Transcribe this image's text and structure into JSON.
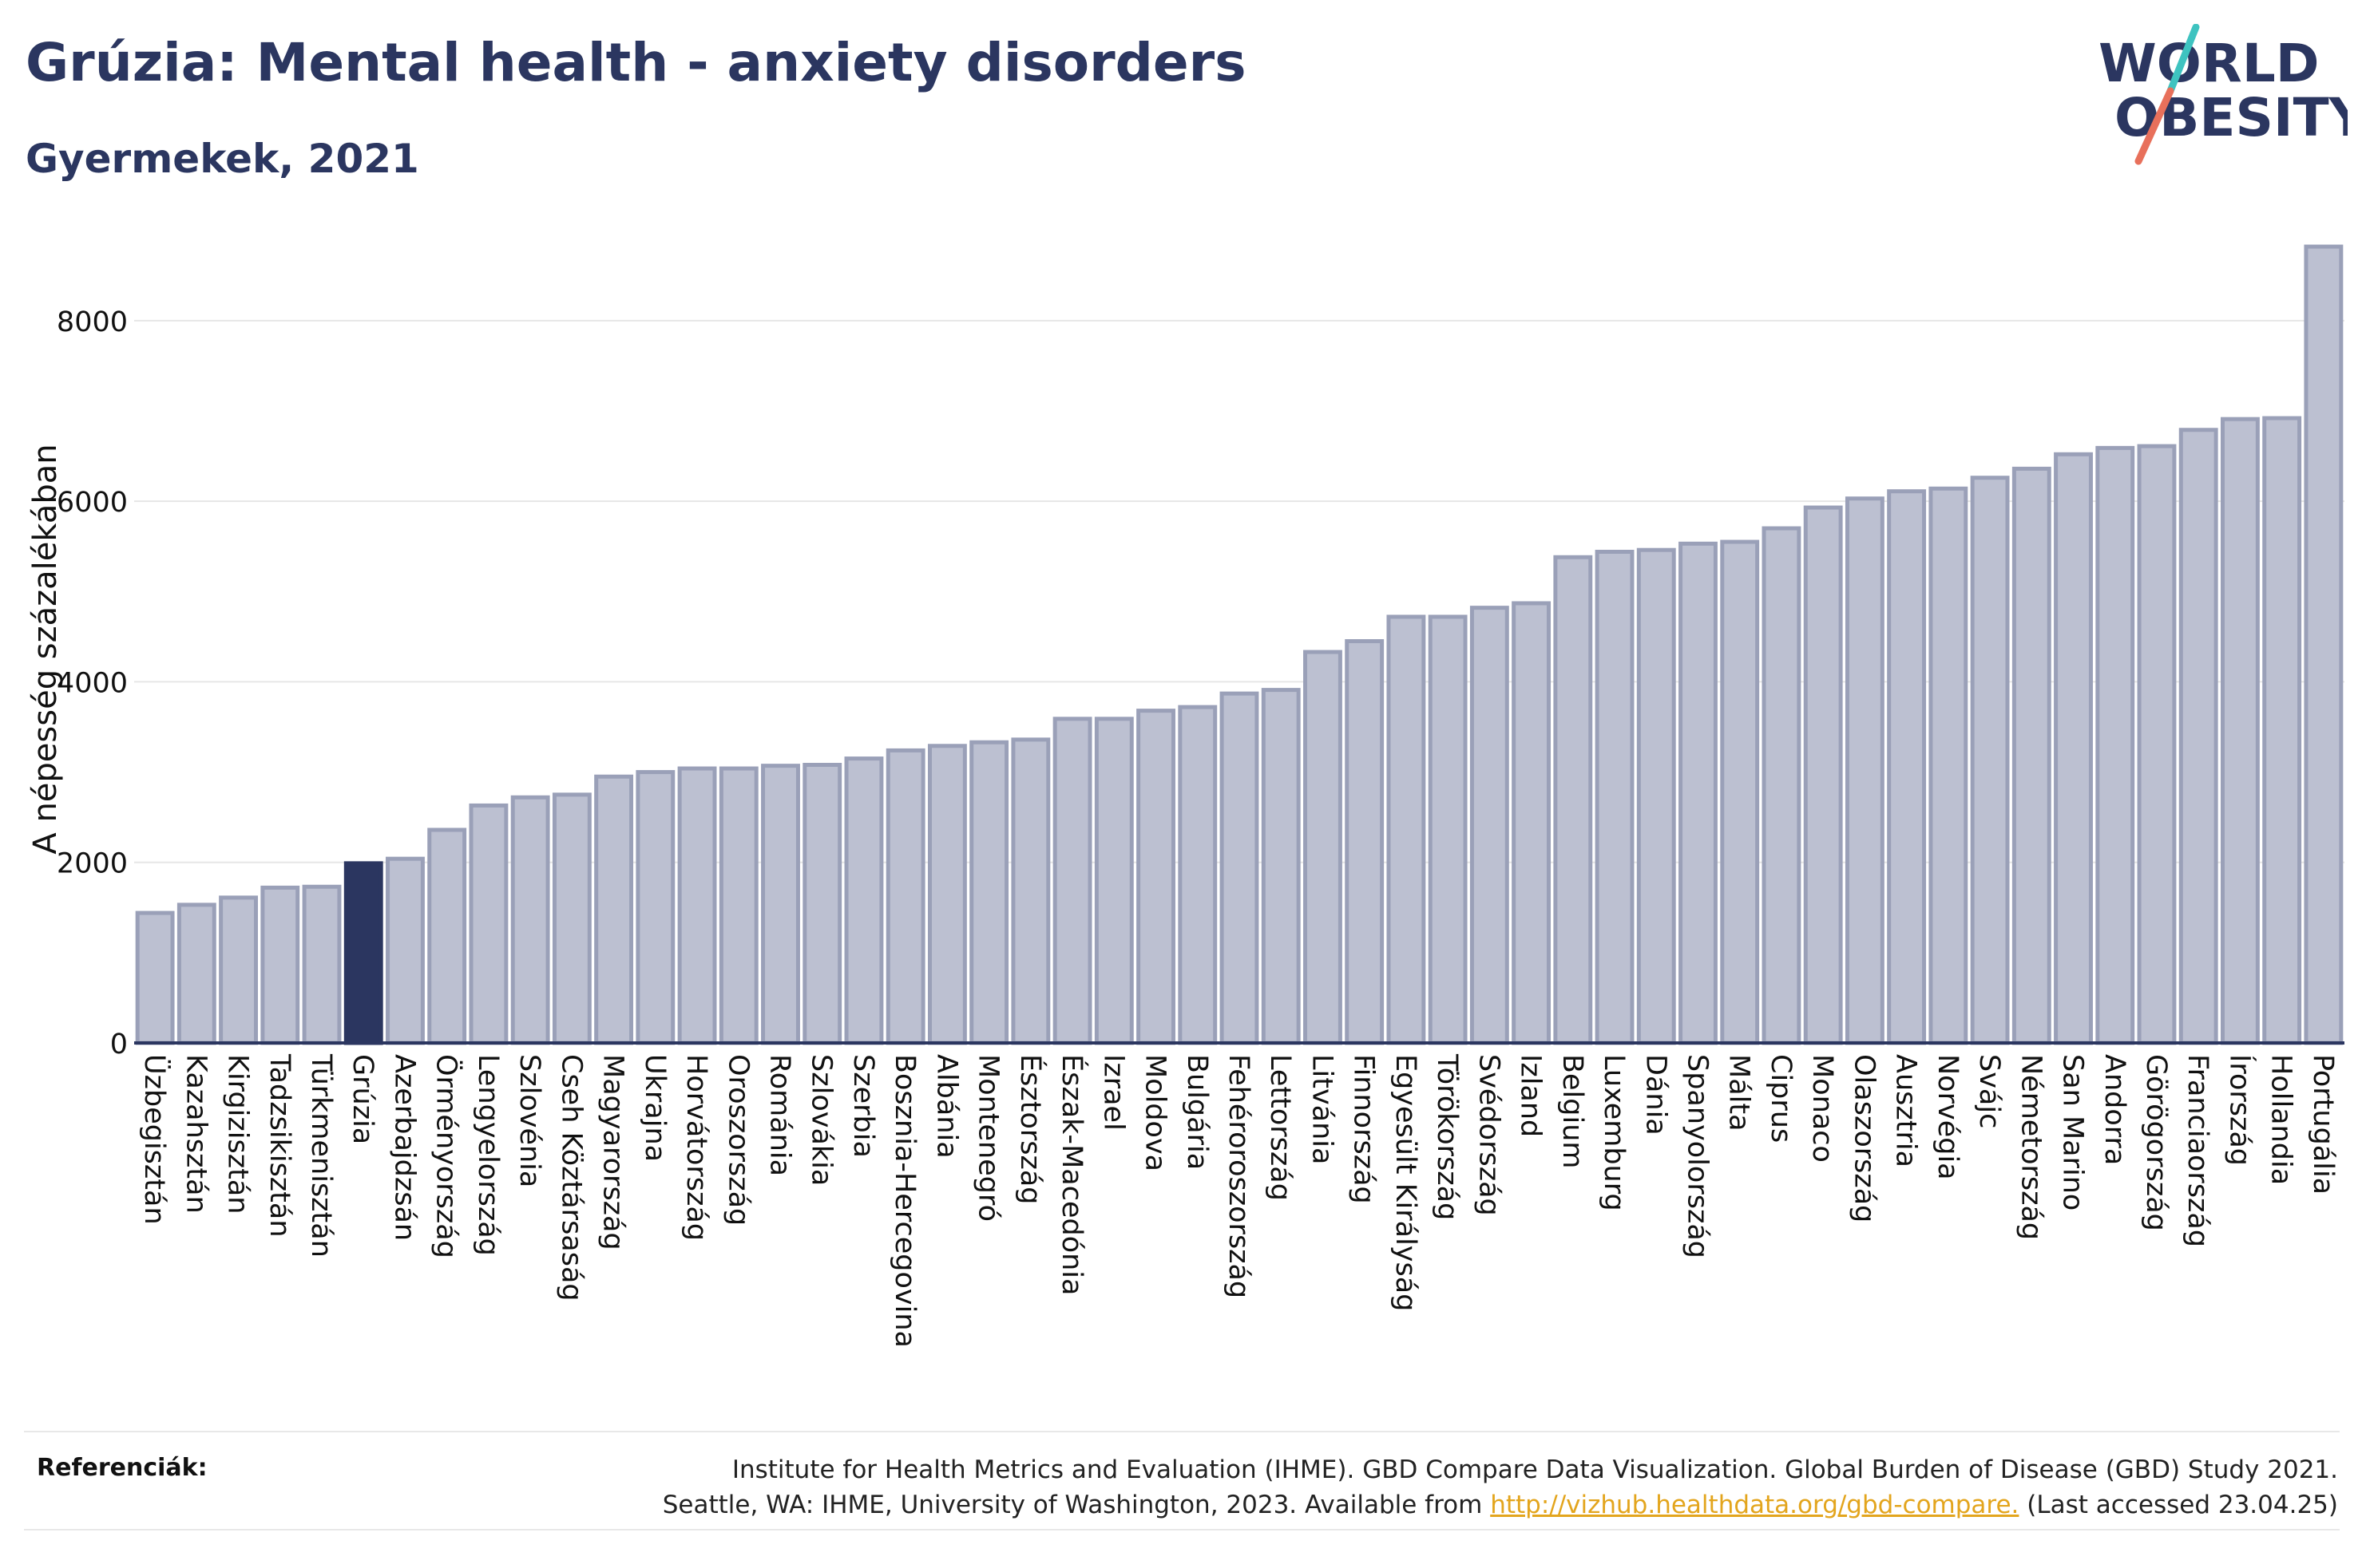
{
  "header": {
    "title": "Grúzia: Mental health - anxiety disorders",
    "subtitle": "Gyermekek, 2021"
  },
  "logo": {
    "line1": "WORLD",
    "line2": "OBESITY",
    "slash_colors": [
      "#3ec3c0",
      "#e8705b"
    ]
  },
  "colors": {
    "bar": "#bcc0d1",
    "bar_stroke": "#9aa0b8",
    "highlight": "#2b3660",
    "grid": "#e6e6e6",
    "axis": "#2b3660"
  },
  "chart_data": {
    "type": "bar",
    "title": "Grúzia: Mental health - anxiety disorders",
    "subtitle": "Gyermekek, 2021",
    "ylabel": "A népesség százalékában",
    "xlabel": "",
    "ylim": [
      0,
      8900
    ],
    "yticks": [
      0,
      2000,
      4000,
      6000,
      8000
    ],
    "grid": true,
    "highlight": "Grúzia",
    "categories": [
      "Üzbegisztán",
      "Kazahsztán",
      "Kirgizisztán",
      "Tadzsikisztán",
      "Türkmenisztán",
      "Grúzia",
      "Azerbajdzsán",
      "Örményország",
      "Lengyelország",
      "Szlovénia",
      "Cseh Köztársaság",
      "Magyarország",
      "Ukrajna",
      "Horvátország",
      "Oroszország",
      "Románia",
      "Szlovákia",
      "Szerbia",
      "Bosznia-Hercegovina",
      "Albánia",
      "Montenegró",
      "Észtország",
      "Észak-Macedónia",
      "Izrael",
      "Moldova",
      "Bulgária",
      "Fehéroroszország",
      "Lettország",
      "Litvánia",
      "Finnország",
      "Egyesült Királyság",
      "Törökország",
      "Svédország",
      "Izland",
      "Belgium",
      "Luxemburg",
      "Dánia",
      "Spanyolország",
      "Málta",
      "Ciprus",
      "Monaco",
      "Olaszország",
      "Ausztria",
      "Norvégia",
      "Svájc",
      "Németország",
      "San Marino",
      "Andorra",
      "Görögország",
      "Franciaország",
      "Írország",
      "Hollandia",
      "Portugália"
    ],
    "values": [
      1440,
      1530,
      1610,
      1720,
      1730,
      1990,
      2040,
      2360,
      2630,
      2720,
      2750,
      2950,
      3000,
      3040,
      3040,
      3070,
      3080,
      3150,
      3240,
      3290,
      3330,
      3360,
      3590,
      3590,
      3680,
      3720,
      3870,
      3910,
      4330,
      4450,
      4720,
      4720,
      4820,
      4870,
      5380,
      5440,
      5460,
      5530,
      5550,
      5700,
      5930,
      6030,
      6110,
      6140,
      6260,
      6360,
      6520,
      6590,
      6610,
      6790,
      6910,
      6920,
      8820
    ]
  },
  "footer": {
    "label": "Referenciák:",
    "line1": "Institute for Health Metrics and Evaluation (IHME). GBD Compare Data Visualization. Global Burden of Disease (GBD) Study 2021.",
    "line2_prefix": "Seattle, WA: IHME, University of Washington, 2023. Available from ",
    "link": "http://vizhub.healthdata.org/gbd-compare.",
    "line2_suffix": " (Last accessed 23.04.25)"
  }
}
